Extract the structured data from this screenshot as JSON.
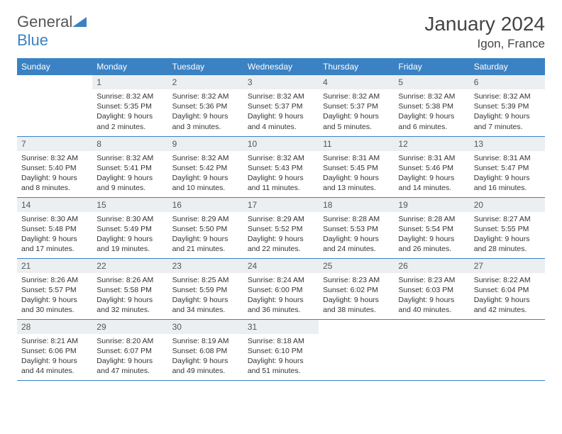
{
  "logo": {
    "text1": "General",
    "text2": "Blue"
  },
  "title": "January 2024",
  "location": "Igon, France",
  "colors": {
    "header_bg": "#3b82c4",
    "header_text": "#ffffff",
    "daynum_bg": "#eceff1",
    "border": "#3b82c4",
    "body_text": "#333333",
    "title_text": "#444444"
  },
  "fonts": {
    "title_size": 28,
    "location_size": 17,
    "dayhdr_size": 12,
    "body_size": 10.5
  },
  "weekdays": [
    "Sunday",
    "Monday",
    "Tuesday",
    "Wednesday",
    "Thursday",
    "Friday",
    "Saturday"
  ],
  "weeks": [
    [
      null,
      {
        "d": "1",
        "sr": "8:32 AM",
        "ss": "5:35 PM",
        "dl": "9 hours and 2 minutes."
      },
      {
        "d": "2",
        "sr": "8:32 AM",
        "ss": "5:36 PM",
        "dl": "9 hours and 3 minutes."
      },
      {
        "d": "3",
        "sr": "8:32 AM",
        "ss": "5:37 PM",
        "dl": "9 hours and 4 minutes."
      },
      {
        "d": "4",
        "sr": "8:32 AM",
        "ss": "5:37 PM",
        "dl": "9 hours and 5 minutes."
      },
      {
        "d": "5",
        "sr": "8:32 AM",
        "ss": "5:38 PM",
        "dl": "9 hours and 6 minutes."
      },
      {
        "d": "6",
        "sr": "8:32 AM",
        "ss": "5:39 PM",
        "dl": "9 hours and 7 minutes."
      }
    ],
    [
      {
        "d": "7",
        "sr": "8:32 AM",
        "ss": "5:40 PM",
        "dl": "9 hours and 8 minutes."
      },
      {
        "d": "8",
        "sr": "8:32 AM",
        "ss": "5:41 PM",
        "dl": "9 hours and 9 minutes."
      },
      {
        "d": "9",
        "sr": "8:32 AM",
        "ss": "5:42 PM",
        "dl": "9 hours and 10 minutes."
      },
      {
        "d": "10",
        "sr": "8:32 AM",
        "ss": "5:43 PM",
        "dl": "9 hours and 11 minutes."
      },
      {
        "d": "11",
        "sr": "8:31 AM",
        "ss": "5:45 PM",
        "dl": "9 hours and 13 minutes."
      },
      {
        "d": "12",
        "sr": "8:31 AM",
        "ss": "5:46 PM",
        "dl": "9 hours and 14 minutes."
      },
      {
        "d": "13",
        "sr": "8:31 AM",
        "ss": "5:47 PM",
        "dl": "9 hours and 16 minutes."
      }
    ],
    [
      {
        "d": "14",
        "sr": "8:30 AM",
        "ss": "5:48 PM",
        "dl": "9 hours and 17 minutes."
      },
      {
        "d": "15",
        "sr": "8:30 AM",
        "ss": "5:49 PM",
        "dl": "9 hours and 19 minutes."
      },
      {
        "d": "16",
        "sr": "8:29 AM",
        "ss": "5:50 PM",
        "dl": "9 hours and 21 minutes."
      },
      {
        "d": "17",
        "sr": "8:29 AM",
        "ss": "5:52 PM",
        "dl": "9 hours and 22 minutes."
      },
      {
        "d": "18",
        "sr": "8:28 AM",
        "ss": "5:53 PM",
        "dl": "9 hours and 24 minutes."
      },
      {
        "d": "19",
        "sr": "8:28 AM",
        "ss": "5:54 PM",
        "dl": "9 hours and 26 minutes."
      },
      {
        "d": "20",
        "sr": "8:27 AM",
        "ss": "5:55 PM",
        "dl": "9 hours and 28 minutes."
      }
    ],
    [
      {
        "d": "21",
        "sr": "8:26 AM",
        "ss": "5:57 PM",
        "dl": "9 hours and 30 minutes."
      },
      {
        "d": "22",
        "sr": "8:26 AM",
        "ss": "5:58 PM",
        "dl": "9 hours and 32 minutes."
      },
      {
        "d": "23",
        "sr": "8:25 AM",
        "ss": "5:59 PM",
        "dl": "9 hours and 34 minutes."
      },
      {
        "d": "24",
        "sr": "8:24 AM",
        "ss": "6:00 PM",
        "dl": "9 hours and 36 minutes."
      },
      {
        "d": "25",
        "sr": "8:23 AM",
        "ss": "6:02 PM",
        "dl": "9 hours and 38 minutes."
      },
      {
        "d": "26",
        "sr": "8:23 AM",
        "ss": "6:03 PM",
        "dl": "9 hours and 40 minutes."
      },
      {
        "d": "27",
        "sr": "8:22 AM",
        "ss": "6:04 PM",
        "dl": "9 hours and 42 minutes."
      }
    ],
    [
      {
        "d": "28",
        "sr": "8:21 AM",
        "ss": "6:06 PM",
        "dl": "9 hours and 44 minutes."
      },
      {
        "d": "29",
        "sr": "8:20 AM",
        "ss": "6:07 PM",
        "dl": "9 hours and 47 minutes."
      },
      {
        "d": "30",
        "sr": "8:19 AM",
        "ss": "6:08 PM",
        "dl": "9 hours and 49 minutes."
      },
      {
        "d": "31",
        "sr": "8:18 AM",
        "ss": "6:10 PM",
        "dl": "9 hours and 51 minutes."
      },
      null,
      null,
      null
    ]
  ],
  "labels": {
    "sunrise": "Sunrise:",
    "sunset": "Sunset:",
    "daylight": "Daylight:"
  }
}
